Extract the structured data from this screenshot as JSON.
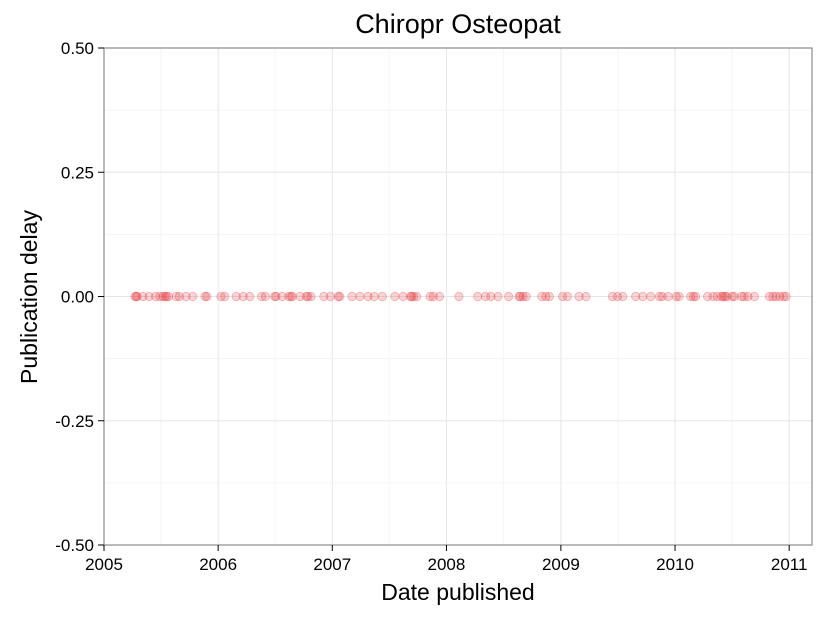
{
  "chart_data": {
    "type": "scatter",
    "title": "Chiropr Osteopat",
    "xlabel": "Date published",
    "ylabel": "Publication delay",
    "xlim": [
      "2005-01-01",
      "2011-03-15"
    ],
    "ylim": [
      -0.5,
      0.5
    ],
    "x_ticks": [
      "2005",
      "2006",
      "2007",
      "2008",
      "2009",
      "2010",
      "2011"
    ],
    "y_ticks": [
      "0.50",
      "0.25",
      "0.00",
      "-0.25",
      "-0.50"
    ],
    "grid": true,
    "point_color": "#e8232a",
    "point_alpha": 0.2,
    "series": [
      {
        "x": [
          "2005-04-10",
          "2005-04-14",
          "2005-04-17",
          "2005-05-05",
          "2005-05-25",
          "2005-06-15",
          "2005-06-28",
          "2005-07-08",
          "2005-07-15",
          "2005-07-20",
          "2005-07-26",
          "2005-08-20",
          "2005-08-30",
          "2005-09-20",
          "2005-10-12",
          "2005-11-20",
          "2005-11-26",
          "2006-01-10",
          "2006-01-22",
          "2006-02-28",
          "2006-03-22",
          "2006-04-12",
          "2006-05-20",
          "2006-06-01",
          "2006-07-01",
          "2006-07-05",
          "2006-07-25",
          "2006-08-15",
          "2006-08-22",
          "2006-08-26",
          "2006-09-20",
          "2006-10-10",
          "2006-10-15",
          "2006-10-25",
          "2006-12-05",
          "2006-12-26",
          "2007-01-20",
          "2007-01-25",
          "2007-03-05",
          "2007-03-30",
          "2007-04-25",
          "2007-05-15",
          "2007-06-10",
          "2007-07-20",
          "2007-08-15",
          "2007-09-08",
          "2007-09-12",
          "2007-09-18",
          "2007-09-28",
          "2007-11-10",
          "2007-11-20",
          "2007-12-10",
          "2008-02-10",
          "2008-04-10",
          "2008-05-05",
          "2008-05-22",
          "2008-06-14",
          "2008-07-18",
          "2008-08-20",
          "2008-08-24",
          "2008-09-02",
          "2008-09-12",
          "2008-11-01",
          "2008-11-14",
          "2008-11-25",
          "2009-01-06",
          "2009-01-22",
          "2009-02-28",
          "2009-03-22",
          "2009-06-15",
          "2009-07-01",
          "2009-07-18",
          "2009-08-28",
          "2009-09-20",
          "2009-10-15",
          "2009-11-12",
          "2009-11-21",
          "2009-12-10",
          "2010-01-05",
          "2010-01-14",
          "2010-02-20",
          "2010-03-01",
          "2010-03-08",
          "2010-04-15",
          "2010-05-03",
          "2010-05-16",
          "2010-05-30",
          "2010-06-04",
          "2010-06-10",
          "2010-06-16",
          "2010-07-03",
          "2010-07-10",
          "2010-08-02",
          "2010-08-10",
          "2010-08-22",
          "2010-09-12",
          "2010-10-30",
          "2010-11-10",
          "2010-11-20",
          "2010-12-02",
          "2010-12-14",
          "2010-12-22"
        ],
        "y": [
          0,
          0,
          0,
          0,
          0,
          0,
          0,
          0,
          0,
          0,
          0,
          0,
          0,
          0,
          0,
          0,
          0,
          0,
          0,
          0,
          0,
          0,
          0,
          0,
          0,
          0,
          0,
          0,
          0,
          0,
          0,
          0,
          0,
          0,
          0,
          0,
          0,
          0,
          0,
          0,
          0,
          0,
          0,
          0,
          0,
          0,
          0,
          0,
          0,
          0,
          0,
          0,
          0,
          0,
          0,
          0,
          0,
          0,
          0,
          0,
          0,
          0,
          0,
          0,
          0,
          0,
          0,
          0,
          0,
          0,
          0,
          0,
          0,
          0,
          0,
          0,
          0,
          0,
          0,
          0,
          0,
          0,
          0,
          0,
          0,
          0,
          0,
          0,
          0,
          0,
          0,
          0,
          0,
          0,
          0,
          0,
          0,
          0,
          0,
          0,
          0,
          0
        ]
      }
    ]
  }
}
